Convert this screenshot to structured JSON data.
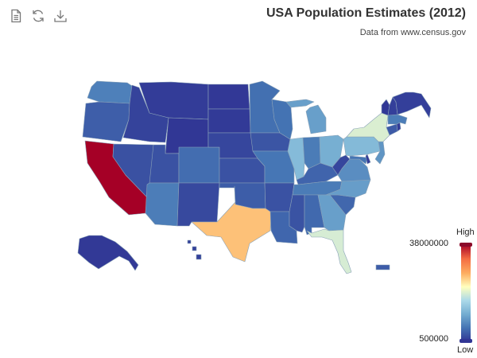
{
  "toolbar": {
    "icons": [
      "document-icon",
      "refresh-icon",
      "download-icon"
    ]
  },
  "header": {
    "title": "USA Population Estimates (2012)",
    "subtitle": "Data from www.census.gov"
  },
  "legend": {
    "high_label": "High",
    "low_label": "Low",
    "max_value": "38000000",
    "min_value": "500000",
    "colors": [
      "#313695",
      "#4575b4",
      "#74add1",
      "#abd9e9",
      "#ffffbf",
      "#fdae61",
      "#f46d43",
      "#a50026"
    ]
  },
  "map_data": {
    "type": "choropleth",
    "metric": "population_2012",
    "range": [
      500000,
      38000000
    ],
    "states": [
      {
        "id": "WA",
        "value": 6900000
      },
      {
        "id": "OR",
        "value": 3900000
      },
      {
        "id": "CA",
        "value": 38000000
      },
      {
        "id": "ID",
        "value": 1600000
      },
      {
        "id": "NV",
        "value": 2800000
      },
      {
        "id": "MT",
        "value": 1000000
      },
      {
        "id": "WY",
        "value": 580000
      },
      {
        "id": "UT",
        "value": 2900000
      },
      {
        "id": "AZ",
        "value": 6600000
      },
      {
        "id": "CO",
        "value": 5200000
      },
      {
        "id": "NM",
        "value": 2100000
      },
      {
        "id": "ND",
        "value": 700000
      },
      {
        "id": "SD",
        "value": 830000
      },
      {
        "id": "NE",
        "value": 1900000
      },
      {
        "id": "KS",
        "value": 2900000
      },
      {
        "id": "OK",
        "value": 3800000
      },
      {
        "id": "TX",
        "value": 26000000
      },
      {
        "id": "MN",
        "value": 5400000
      },
      {
        "id": "IA",
        "value": 3100000
      },
      {
        "id": "MO",
        "value": 6000000
      },
      {
        "id": "AR",
        "value": 2900000
      },
      {
        "id": "LA",
        "value": 4600000
      },
      {
        "id": "WI",
        "value": 5700000
      },
      {
        "id": "IL",
        "value": 12900000
      },
      {
        "id": "MI",
        "value": 9900000
      },
      {
        "id": "IN",
        "value": 6500000
      },
      {
        "id": "OH",
        "value": 11500000
      },
      {
        "id": "KY",
        "value": 4400000
      },
      {
        "id": "TN",
        "value": 6500000
      },
      {
        "id": "MS",
        "value": 3000000
      },
      {
        "id": "AL",
        "value": 4800000
      },
      {
        "id": "GA",
        "value": 9900000
      },
      {
        "id": "FL",
        "value": 19300000
      },
      {
        "id": "SC",
        "value": 4700000
      },
      {
        "id": "NC",
        "value": 9700000
      },
      {
        "id": "VA",
        "value": 8200000
      },
      {
        "id": "WV",
        "value": 1900000
      },
      {
        "id": "PA",
        "value": 12800000
      },
      {
        "id": "NY",
        "value": 19600000
      },
      {
        "id": "NJ",
        "value": 8900000
      },
      {
        "id": "ME",
        "value": 1300000
      },
      {
        "id": "NH",
        "value": 1300000
      },
      {
        "id": "VT",
        "value": 630000
      },
      {
        "id": "MA",
        "value": 6600000
      },
      {
        "id": "CT",
        "value": 3600000
      },
      {
        "id": "RI",
        "value": 1050000
      },
      {
        "id": "DE",
        "value": 920000
      },
      {
        "id": "MD",
        "value": 5900000
      },
      {
        "id": "AK",
        "value": 730000
      },
      {
        "id": "HI",
        "value": 1400000
      },
      {
        "id": "PR",
        "value": 3700000
      }
    ]
  }
}
